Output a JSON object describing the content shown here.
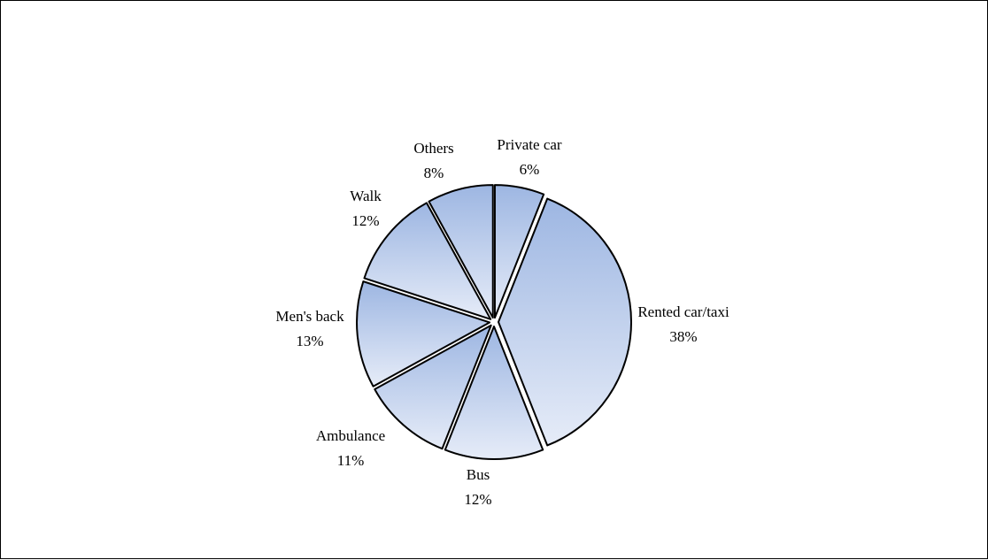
{
  "chart_data": {
    "type": "pie",
    "title": "",
    "categories": [
      "Private car",
      "Rented car/taxi",
      "Bus",
      "Ambulance",
      "Men's back",
      "Walk",
      "Others"
    ],
    "values": [
      6,
      38,
      12,
      11,
      13,
      12,
      8
    ],
    "value_labels": [
      "6%",
      "38%",
      "12%",
      "11%",
      "13%",
      "12%",
      "8%"
    ],
    "exploded": true,
    "legend": "none",
    "colors": {
      "fill_top": "#9db6e2",
      "fill_bottom": "#e6ecf8",
      "stroke": "#000000"
    }
  }
}
